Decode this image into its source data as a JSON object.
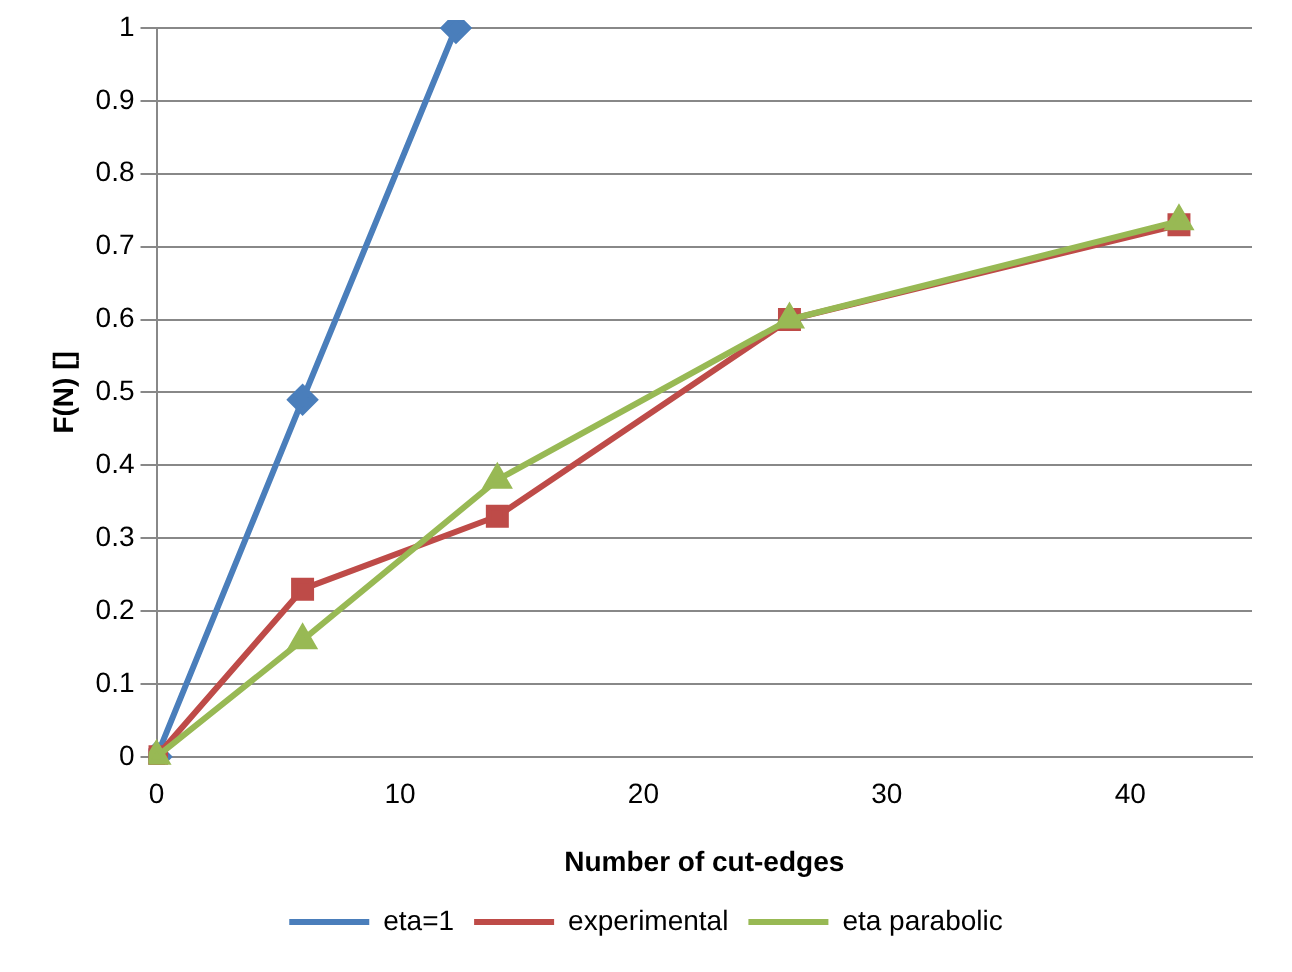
{
  "chart_data": {
    "type": "line",
    "xlabel": "Number of cut-edges",
    "ylabel": "F(N) []",
    "xlim": [
      0,
      45
    ],
    "xticks": [
      0,
      10,
      20,
      30,
      40
    ],
    "ylim": [
      0,
      1
    ],
    "yticks": [
      0,
      0.1,
      0.2,
      0.3,
      0.4,
      0.5,
      0.6,
      0.7,
      0.8,
      0.9,
      1
    ],
    "grid": "y",
    "legend": "bottom",
    "series": [
      {
        "name": "eta=1",
        "color": "#4a7ebb",
        "marker": "diamond",
        "x": [
          0,
          6,
          12.3
        ],
        "values": [
          0,
          0.49,
          1
        ]
      },
      {
        "name": "experimental",
        "color": "#be4b48",
        "marker": "square",
        "x": [
          0,
          6,
          14,
          26,
          42
        ],
        "values": [
          0,
          0.23,
          0.33,
          0.6,
          0.73
        ]
      },
      {
        "name": "eta parabolic",
        "color": "#98b954",
        "marker": "triangle",
        "x": [
          0,
          6,
          14,
          26,
          42
        ],
        "values": [
          0,
          0.16,
          0.38,
          0.6,
          0.735
        ]
      }
    ]
  }
}
